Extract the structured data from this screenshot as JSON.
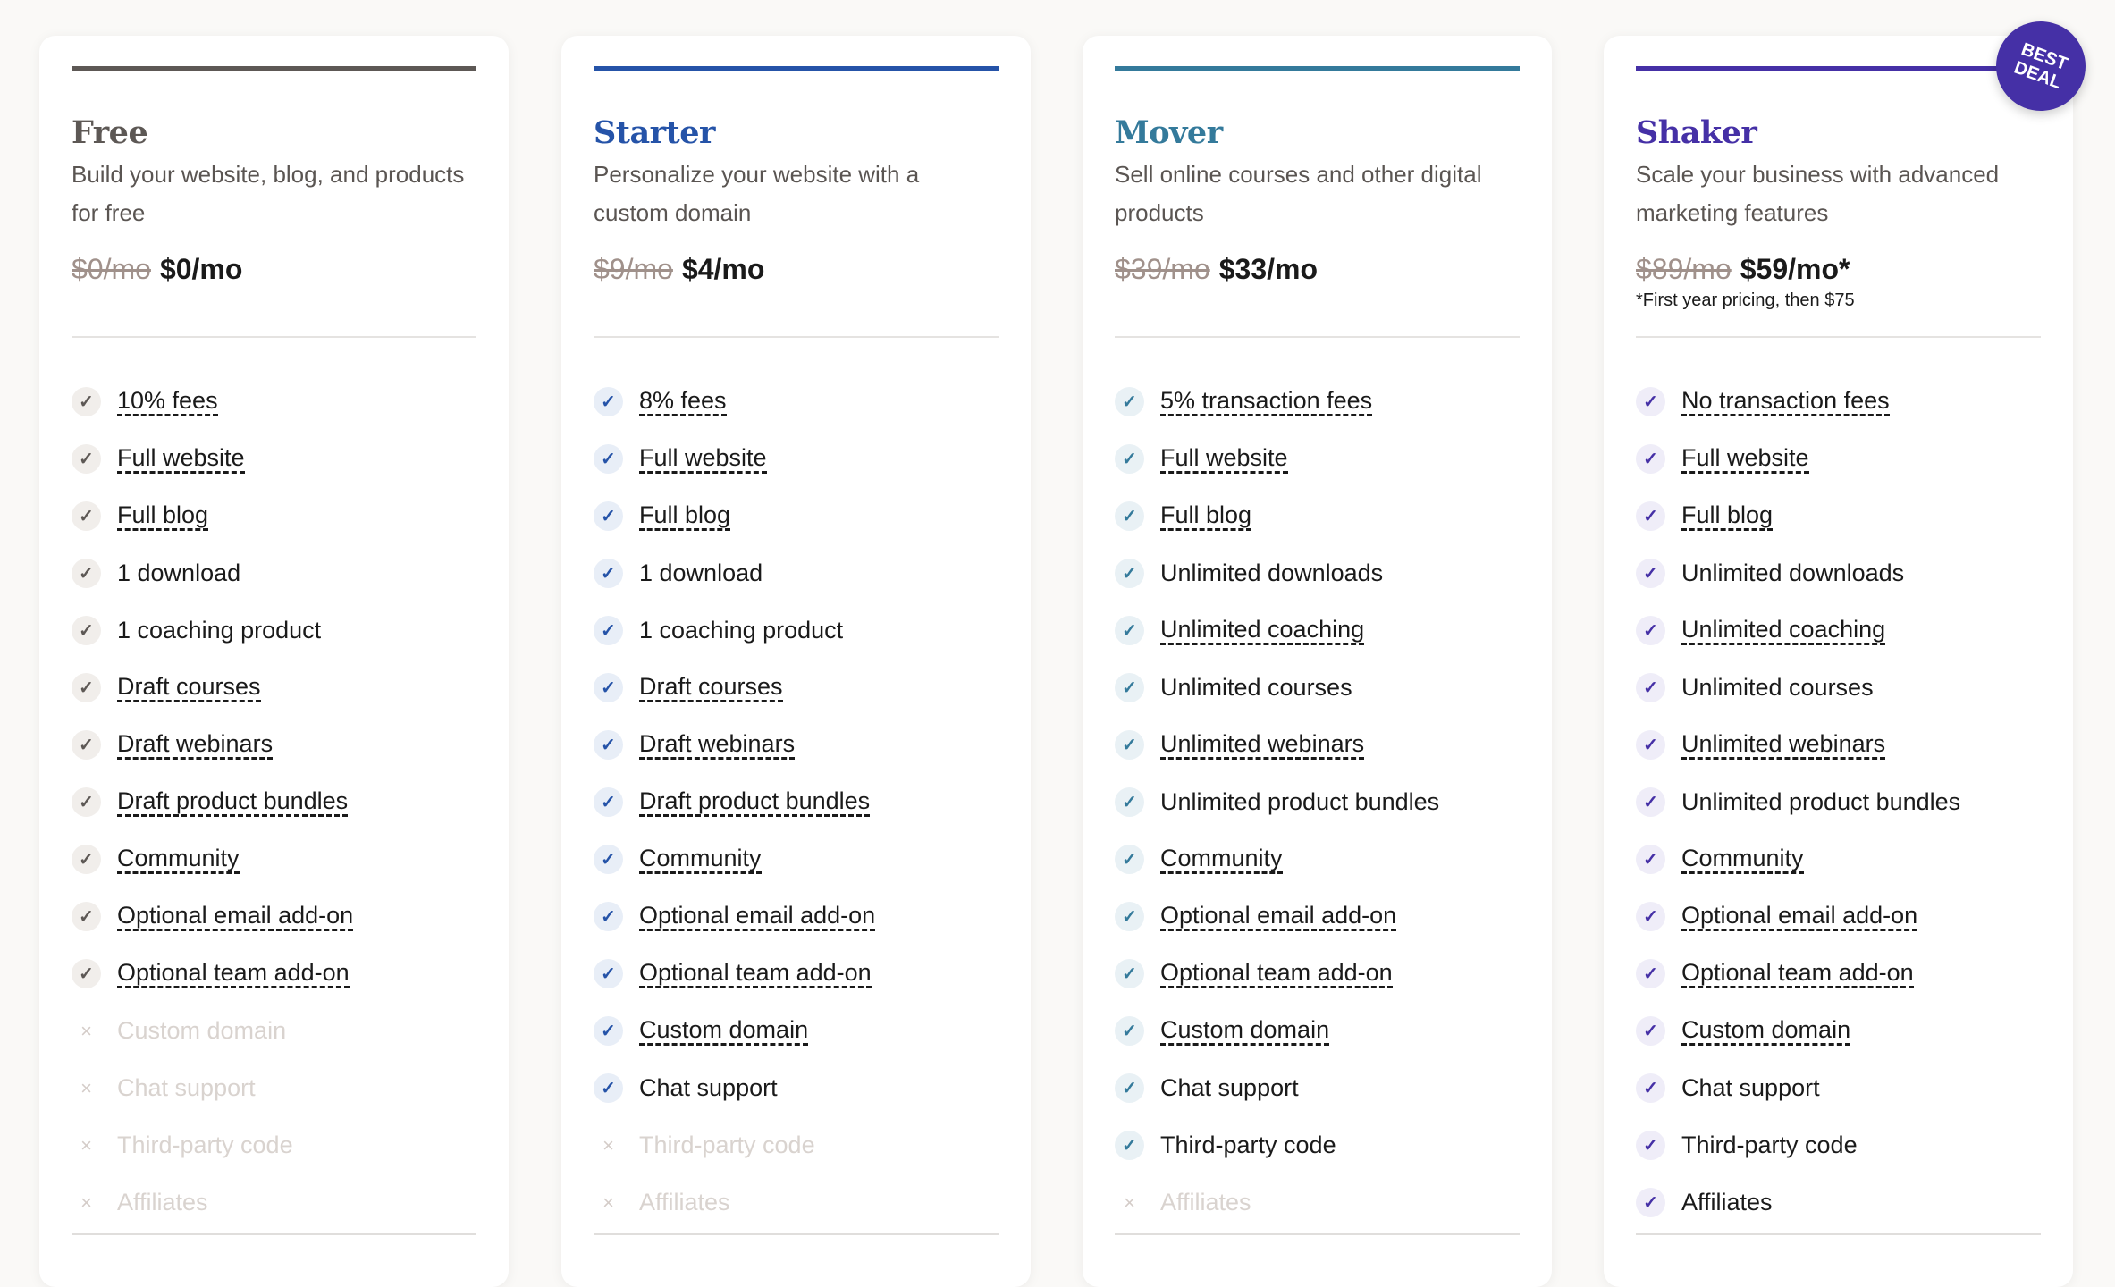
{
  "badge": "BEST DEAL",
  "plans": [
    {
      "name": "Free",
      "color": "#5d5855",
      "check_bg": "#f1eeeb",
      "description": "Build your website, blog, and products for free",
      "old_price": "$0/mo",
      "price": "$0/mo",
      "note": "",
      "features": [
        {
          "label": "10% fees",
          "included": true,
          "underline": true
        },
        {
          "label": "Full website",
          "included": true,
          "underline": true
        },
        {
          "label": "Full blog",
          "included": true,
          "underline": true
        },
        {
          "label": "1 download",
          "included": true,
          "underline": false
        },
        {
          "label": "1 coaching product",
          "included": true,
          "underline": false
        },
        {
          "label": "Draft courses",
          "included": true,
          "underline": true
        },
        {
          "label": "Draft webinars",
          "included": true,
          "underline": true
        },
        {
          "label": "Draft product bundles",
          "included": true,
          "underline": true
        },
        {
          "label": "Community",
          "included": true,
          "underline": true
        },
        {
          "label": "Optional email add-on",
          "included": true,
          "underline": true
        },
        {
          "label": "Optional team add-on",
          "included": true,
          "underline": true
        },
        {
          "label": "Custom domain",
          "included": false,
          "underline": false
        },
        {
          "label": "Chat support",
          "included": false,
          "underline": false
        },
        {
          "label": "Third-party code",
          "included": false,
          "underline": false
        },
        {
          "label": "Affiliates",
          "included": false,
          "underline": false
        }
      ]
    },
    {
      "name": "Starter",
      "color": "#2553a8",
      "check_bg": "#e8eef7",
      "description": "Personalize your website with a custom domain",
      "old_price": "$9/mo",
      "price": "$4/mo",
      "note": "",
      "features": [
        {
          "label": "8% fees",
          "included": true,
          "underline": true
        },
        {
          "label": "Full website",
          "included": true,
          "underline": true
        },
        {
          "label": "Full blog",
          "included": true,
          "underline": true
        },
        {
          "label": "1 download",
          "included": true,
          "underline": false
        },
        {
          "label": "1 coaching product",
          "included": true,
          "underline": false
        },
        {
          "label": "Draft courses",
          "included": true,
          "underline": true
        },
        {
          "label": "Draft webinars",
          "included": true,
          "underline": true
        },
        {
          "label": "Draft product bundles",
          "included": true,
          "underline": true
        },
        {
          "label": "Community",
          "included": true,
          "underline": true
        },
        {
          "label": "Optional email add-on",
          "included": true,
          "underline": true
        },
        {
          "label": "Optional team add-on",
          "included": true,
          "underline": true
        },
        {
          "label": "Custom domain",
          "included": true,
          "underline": true
        },
        {
          "label": "Chat support",
          "included": true,
          "underline": false
        },
        {
          "label": "Third-party code",
          "included": false,
          "underline": false
        },
        {
          "label": "Affiliates",
          "included": false,
          "underline": false
        }
      ]
    },
    {
      "name": "Mover",
      "color": "#347a9b",
      "check_bg": "#e9f1f5",
      "description": "Sell online courses and other digital products",
      "old_price": "$39/mo",
      "price": "$33/mo",
      "note": "",
      "features": [
        {
          "label": "5% transaction fees",
          "included": true,
          "underline": true
        },
        {
          "label": "Full website",
          "included": true,
          "underline": true
        },
        {
          "label": "Full blog",
          "included": true,
          "underline": true
        },
        {
          "label": "Unlimited downloads",
          "included": true,
          "underline": false
        },
        {
          "label": "Unlimited coaching",
          "included": true,
          "underline": true
        },
        {
          "label": "Unlimited courses",
          "included": true,
          "underline": false
        },
        {
          "label": "Unlimited webinars",
          "included": true,
          "underline": true
        },
        {
          "label": "Unlimited product bundles",
          "included": true,
          "underline": false
        },
        {
          "label": "Community",
          "included": true,
          "underline": true
        },
        {
          "label": "Optional email add-on",
          "included": true,
          "underline": true
        },
        {
          "label": "Optional team add-on",
          "included": true,
          "underline": true
        },
        {
          "label": "Custom domain",
          "included": true,
          "underline": true
        },
        {
          "label": "Chat support",
          "included": true,
          "underline": false
        },
        {
          "label": "Third-party code",
          "included": true,
          "underline": false
        },
        {
          "label": "Affiliates",
          "included": false,
          "underline": false
        }
      ]
    },
    {
      "name": "Shaker",
      "color": "#4530a6",
      "check_bg": "#efedf8",
      "description": "Scale your business with advanced marketing features",
      "old_price": "$89/mo",
      "price": "$59/mo*",
      "note": "*First year pricing, then $75",
      "features": [
        {
          "label": "No transaction fees",
          "included": true,
          "underline": true
        },
        {
          "label": "Full website",
          "included": true,
          "underline": true
        },
        {
          "label": "Full blog",
          "included": true,
          "underline": true
        },
        {
          "label": "Unlimited downloads",
          "included": true,
          "underline": false
        },
        {
          "label": "Unlimited coaching",
          "included": true,
          "underline": true
        },
        {
          "label": "Unlimited courses",
          "included": true,
          "underline": false
        },
        {
          "label": "Unlimited webinars",
          "included": true,
          "underline": true
        },
        {
          "label": "Unlimited product bundles",
          "included": true,
          "underline": false
        },
        {
          "label": "Community",
          "included": true,
          "underline": true
        },
        {
          "label": "Optional email add-on",
          "included": true,
          "underline": true
        },
        {
          "label": "Optional team add-on",
          "included": true,
          "underline": true
        },
        {
          "label": "Custom domain",
          "included": true,
          "underline": true
        },
        {
          "label": "Chat support",
          "included": true,
          "underline": false
        },
        {
          "label": "Third-party code",
          "included": true,
          "underline": false
        },
        {
          "label": "Affiliates",
          "included": true,
          "underline": false
        }
      ]
    }
  ]
}
